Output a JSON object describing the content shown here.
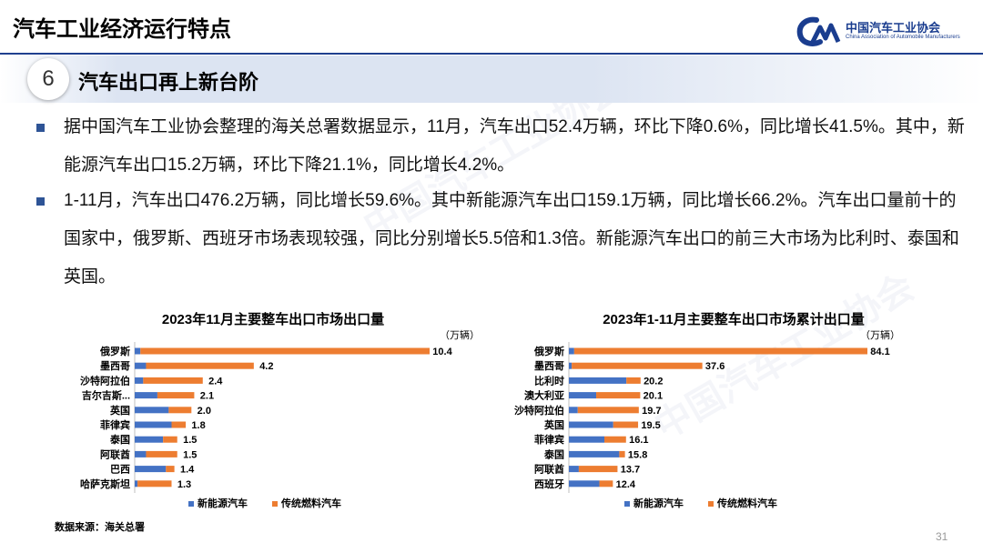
{
  "header": {
    "title": "汽车工业经济运行特点",
    "logo_cn": "中国汽车工业协会",
    "logo_en": "China Association of Automobile Manufacturers"
  },
  "section": {
    "number": "6",
    "title": "汽车出口再上新台阶"
  },
  "bullets": [
    {
      "text": "据中国汽车工业协会整理的海关总署数据显示，11月，汽车出口52.4万辆，环比下降0.6%，同比增长41.5%。其中，新能源汽车出口15.2万辆，环比下降21.1%，同比增长4.2%。"
    },
    {
      "text": "1-11月，汽车出口476.2万辆，同比增长59.6%。其中新能源汽车出口159.1万辆，同比增长66.2%。汽车出口量前十的国家中，俄罗斯、西班牙市场表现较强，同比分别增长5.5倍和1.3倍。新能源汽车出口的前三大市场为比利时、泰国和英国。"
    }
  ],
  "chart_data": [
    {
      "type": "bar",
      "orientation": "horizontal",
      "stacked": true,
      "title": "2023年11月主要整车出口市场出口量",
      "unit": "（万辆）",
      "categories": [
        "俄罗斯",
        "墨西哥",
        "沙特阿拉伯",
        "吉尔吉斯...",
        "英国",
        "菲律宾",
        "泰国",
        "阿联酋",
        "巴西",
        "哈萨克斯坦"
      ],
      "totals": [
        10.4,
        4.2,
        2.4,
        2.1,
        2.0,
        1.8,
        1.5,
        1.5,
        1.4,
        1.3
      ],
      "series": [
        {
          "name": "新能源汽车",
          "color": "#4472c4",
          "values": [
            0.2,
            0.4,
            0.3,
            0.8,
            1.2,
            1.3,
            1.0,
            0.4,
            1.1,
            0.1
          ]
        },
        {
          "name": "传统燃料汽车",
          "color": "#ed7d31",
          "values": [
            10.2,
            3.8,
            2.1,
            1.3,
            0.8,
            0.5,
            0.5,
            1.1,
            0.3,
            1.2
          ]
        }
      ],
      "legend": "bottom"
    },
    {
      "type": "bar",
      "orientation": "horizontal",
      "stacked": true,
      "title": "2023年1-11月主要整车出口市场累计出口量",
      "unit": "（万辆）",
      "categories": [
        "俄罗斯",
        "墨西哥",
        "比利时",
        "澳大利亚",
        "沙特阿拉伯",
        "英国",
        "菲律宾",
        "泰国",
        "阿联酋",
        "西班牙"
      ],
      "totals": [
        84.1,
        37.6,
        20.2,
        20.1,
        19.7,
        19.5,
        16.1,
        15.8,
        13.7,
        12.4
      ],
      "series": [
        {
          "name": "新能源汽车",
          "color": "#4472c4",
          "values": [
            1.5,
            0.8,
            16.2,
            7.7,
            2.5,
            12.5,
            10.0,
            14.2,
            2.8,
            8.6
          ]
        },
        {
          "name": "传统燃料汽车",
          "color": "#ed7d31",
          "values": [
            82.6,
            36.8,
            4.0,
            12.4,
            17.2,
            7.0,
            6.1,
            1.6,
            10.9,
            3.8
          ]
        }
      ],
      "legend": "bottom"
    }
  ],
  "footer": {
    "source": "数据来源：海关总署",
    "page": "31"
  }
}
